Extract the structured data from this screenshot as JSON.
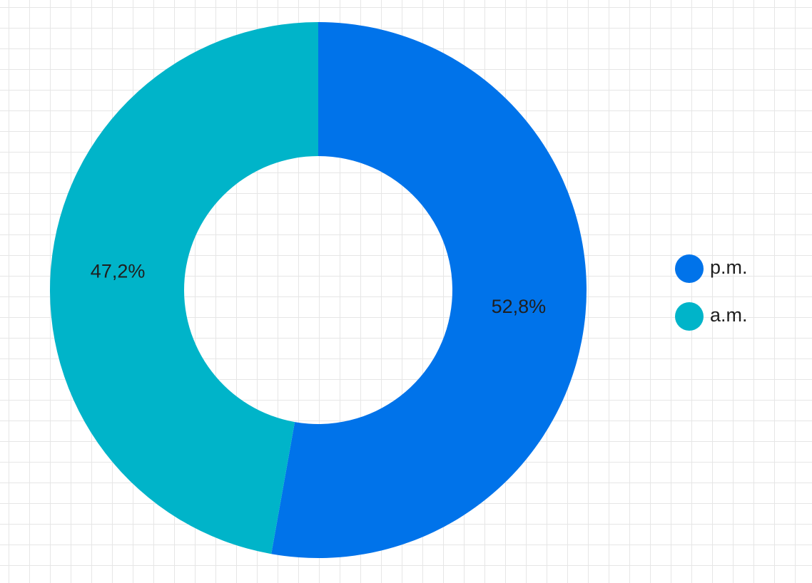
{
  "chart_data": {
    "type": "donut",
    "categories": [
      "p.m.",
      "a.m."
    ],
    "values": [
      52.8,
      47.2
    ],
    "value_labels": [
      "52,8%",
      "47,2%"
    ],
    "colors": [
      "#0073ea",
      "#00b4c9"
    ],
    "legend": "right"
  }
}
